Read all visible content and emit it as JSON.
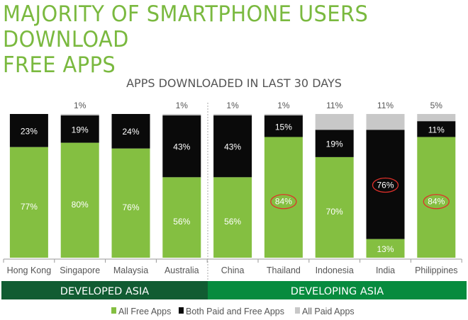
{
  "title_lines": [
    "MAJORITY OF SMARTPHONE USERS DOWNLOAD",
    "FREE APPS"
  ],
  "chart_data": {
    "type": "bar",
    "stacked": true,
    "title": "APPS DOWNLOADED IN LAST 30 DAYS",
    "categories": [
      "Hong Kong",
      "Singapore",
      "Malaysia",
      "Australia",
      "China",
      "Thailand",
      "Indonesia",
      "India",
      "Philippines"
    ],
    "series": [
      {
        "name": "All Free Apps",
        "color": "#84bf41",
        "values": [
          77,
          80,
          76,
          56,
          56,
          84,
          70,
          13,
          84
        ],
        "labels": [
          "77%",
          "80%",
          "76%",
          "56%",
          "56%",
          "84%",
          "70%",
          "13%",
          "84%"
        ]
      },
      {
        "name": "Both Paid and Free Apps",
        "color": "#0a0a0a",
        "values": [
          23,
          19,
          24,
          43,
          43,
          15,
          19,
          76,
          11
        ],
        "labels": [
          "23%",
          "19%",
          "24%",
          "43%",
          "43%",
          "15%",
          "19%",
          "76%",
          "11%"
        ]
      },
      {
        "name": "All Paid Apps",
        "color": "#c8c8c8",
        "values": [
          0,
          1,
          0,
          1,
          1,
          1,
          11,
          11,
          5
        ],
        "labels": [
          "",
          "1%",
          "",
          "1%",
          "1%",
          "1%",
          "11%",
          "11%",
          "5%"
        ]
      }
    ],
    "highlighted": [
      {
        "category": "Thailand",
        "series": "All Free Apps"
      },
      {
        "category": "India",
        "series": "Both Paid and Free Apps"
      },
      {
        "category": "Philippines",
        "series": "All Free Apps"
      }
    ],
    "highlight_color": "#e0302a",
    "groups": [
      {
        "label": "DEVELOPED ASIA",
        "categories": [
          "Hong Kong",
          "Singapore",
          "Malaysia",
          "Australia"
        ],
        "color": "#115c32"
      },
      {
        "label": "DEVELOPING ASIA",
        "categories": [
          "China",
          "Thailand",
          "Indonesia",
          "India",
          "Philippines"
        ],
        "color": "#078b3e"
      }
    ],
    "ylim": [
      0,
      100
    ],
    "grid": false,
    "legend_position": "bottom"
  }
}
